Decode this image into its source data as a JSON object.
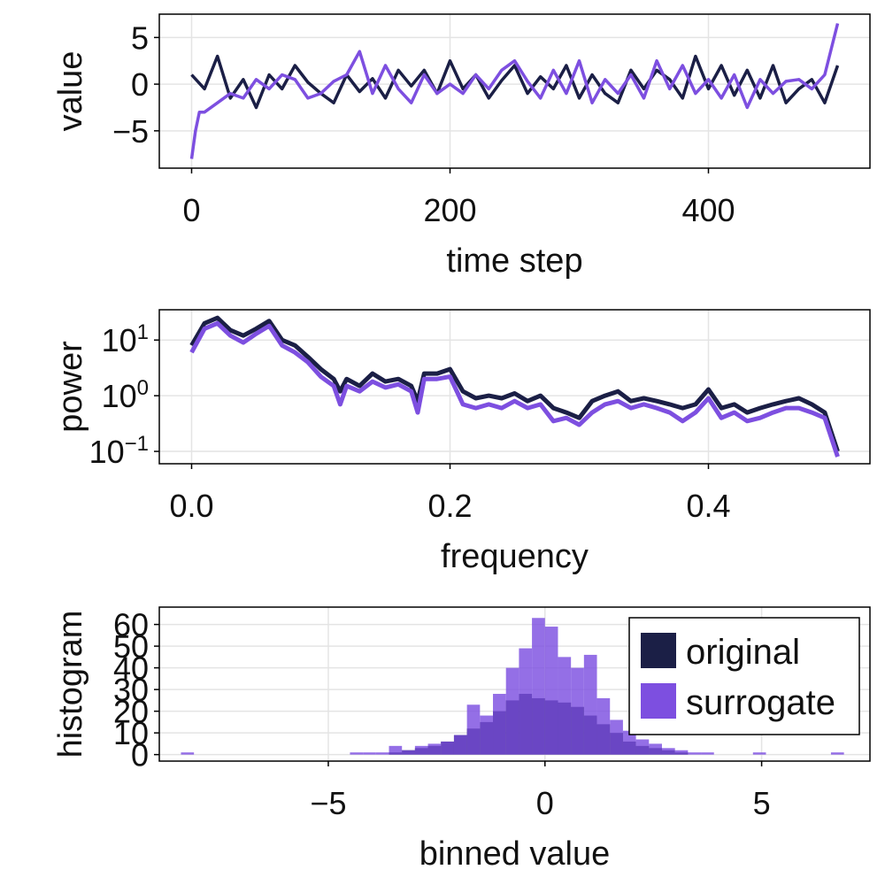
{
  "colors": {
    "original": "#1b1f46",
    "surrogate": "#7d4fe0",
    "grid": "#e4e4e4",
    "frame": "#000000"
  },
  "chart_data": [
    {
      "type": "line",
      "xlabel": "time step",
      "ylabel": "value",
      "xlim": [
        -25,
        525
      ],
      "ylim": [
        -9,
        7.5
      ],
      "xticks": [
        0,
        200,
        400
      ],
      "yticks": [
        -5,
        0,
        5
      ],
      "xtick_labels": [
        "0",
        "200",
        "400"
      ],
      "ytick_labels": [
        "−5",
        "0",
        "5"
      ],
      "grid": true,
      "series": [
        {
          "name": "original",
          "x": [
            0,
            10,
            20,
            30,
            40,
            50,
            60,
            70,
            80,
            90,
            100,
            110,
            120,
            130,
            140,
            150,
            160,
            170,
            180,
            190,
            200,
            210,
            220,
            230,
            240,
            250,
            260,
            270,
            280,
            290,
            300,
            310,
            320,
            330,
            340,
            350,
            360,
            370,
            380,
            390,
            400,
            410,
            420,
            430,
            440,
            450,
            460,
            470,
            480,
            490,
            500
          ],
          "y": [
            1,
            -0.5,
            3,
            -1.5,
            0.5,
            -2.5,
            1,
            -0.5,
            2,
            0.2,
            -1,
            -2,
            1,
            -0.8,
            0.6,
            -1.5,
            1.5,
            -0.2,
            1.5,
            -1,
            2.5,
            -0.5,
            1,
            -1.5,
            0.4,
            2,
            -1,
            0.8,
            -0.5,
            2,
            -1.5,
            1,
            -1,
            -2,
            1.5,
            -0.5,
            1.5,
            0.5,
            -1.5,
            3,
            -0.5,
            2,
            -1.2,
            1.5,
            -1.5,
            2,
            -2,
            -0.5,
            0.5,
            -2,
            2
          ]
        },
        {
          "name": "surrogate",
          "x": [
            0,
            3,
            6,
            10,
            20,
            30,
            40,
            50,
            60,
            70,
            80,
            90,
            100,
            110,
            120,
            130,
            140,
            150,
            160,
            170,
            180,
            190,
            200,
            210,
            220,
            230,
            240,
            250,
            260,
            270,
            280,
            290,
            300,
            310,
            320,
            330,
            340,
            350,
            360,
            370,
            380,
            390,
            400,
            410,
            420,
            430,
            440,
            450,
            460,
            470,
            480,
            490,
            500
          ],
          "y": [
            -8,
            -5,
            -3,
            -3,
            -2,
            -1,
            -1.5,
            0.5,
            -0.5,
            1,
            0.5,
            -1.5,
            -1,
            0.3,
            1,
            3.5,
            -1,
            2,
            -0.5,
            -2,
            1,
            -1,
            0,
            -1,
            1,
            -0.5,
            1.5,
            2.5,
            0.3,
            -1.5,
            1.5,
            -1,
            2.5,
            -2,
            0.5,
            -1,
            1,
            -1.5,
            2.5,
            -0.5,
            2,
            -1,
            0.5,
            -1.5,
            1,
            -2.5,
            0.5,
            -1,
            0.3,
            0.5,
            -0.5,
            1,
            6.5
          ]
        }
      ]
    },
    {
      "type": "line",
      "xlabel": "frequency",
      "ylabel": "power",
      "yscale": "log",
      "xlim": [
        -0.025,
        0.525
      ],
      "ylim": [
        0.06,
        35
      ],
      "xticks": [
        0.0,
        0.2,
        0.4
      ],
      "xtick_labels": [
        "0.0",
        "0.2",
        "0.4"
      ],
      "yticks": [
        0.1,
        1,
        10
      ],
      "ytick_labels": [
        {
          "base": "10",
          "exp": "−1"
        },
        {
          "base": "10",
          "exp": "0"
        },
        {
          "base": "10",
          "exp": "1"
        }
      ],
      "grid": true,
      "series": [
        {
          "name": "original",
          "x": [
            0,
            0.01,
            0.02,
            0.03,
            0.04,
            0.05,
            0.06,
            0.07,
            0.08,
            0.09,
            0.1,
            0.11,
            0.115,
            0.12,
            0.13,
            0.14,
            0.15,
            0.16,
            0.17,
            0.175,
            0.18,
            0.19,
            0.2,
            0.21,
            0.22,
            0.23,
            0.24,
            0.25,
            0.26,
            0.27,
            0.28,
            0.29,
            0.3,
            0.31,
            0.32,
            0.33,
            0.34,
            0.35,
            0.36,
            0.37,
            0.38,
            0.39,
            0.4,
            0.41,
            0.42,
            0.43,
            0.44,
            0.45,
            0.46,
            0.47,
            0.48,
            0.49,
            0.5
          ],
          "y": [
            8,
            20,
            25,
            15,
            12,
            16,
            22,
            10,
            8,
            5,
            3,
            2,
            1.2,
            2,
            1.5,
            2.5,
            1.8,
            2,
            1.5,
            0.8,
            2.5,
            2.5,
            3,
            1.2,
            0.9,
            1,
            0.9,
            1.1,
            0.8,
            1,
            0.6,
            0.5,
            0.4,
            0.8,
            1,
            1.2,
            0.8,
            0.9,
            0.8,
            0.7,
            0.6,
            0.7,
            1.3,
            0.6,
            0.7,
            0.5,
            0.6,
            0.7,
            0.8,
            0.9,
            0.7,
            0.5,
            0.1
          ]
        },
        {
          "name": "surrogate",
          "x": [
            0,
            0.01,
            0.02,
            0.03,
            0.04,
            0.05,
            0.06,
            0.07,
            0.08,
            0.09,
            0.1,
            0.11,
            0.115,
            0.12,
            0.13,
            0.14,
            0.15,
            0.16,
            0.17,
            0.175,
            0.18,
            0.19,
            0.2,
            0.21,
            0.22,
            0.23,
            0.24,
            0.25,
            0.26,
            0.27,
            0.28,
            0.29,
            0.3,
            0.31,
            0.32,
            0.33,
            0.34,
            0.35,
            0.36,
            0.37,
            0.38,
            0.39,
            0.4,
            0.41,
            0.42,
            0.43,
            0.44,
            0.45,
            0.46,
            0.47,
            0.48,
            0.49,
            0.5
          ],
          "y": [
            6,
            16,
            20,
            12,
            9,
            13,
            18,
            8,
            6,
            4,
            2.2,
            1.5,
            0.7,
            1.5,
            1.2,
            1.8,
            1.4,
            1.6,
            1.2,
            0.5,
            2,
            2,
            2.2,
            0.7,
            0.6,
            0.7,
            0.6,
            0.8,
            0.6,
            0.7,
            0.35,
            0.4,
            0.3,
            0.5,
            0.7,
            0.8,
            0.6,
            0.7,
            0.6,
            0.5,
            0.35,
            0.5,
            0.9,
            0.4,
            0.5,
            0.35,
            0.4,
            0.5,
            0.6,
            0.6,
            0.5,
            0.4,
            0.08
          ]
        }
      ]
    },
    {
      "type": "bar",
      "subtype": "histogram",
      "xlabel": "binned value",
      "ylabel": "histogram",
      "xlim": [
        -8.9,
        7.5
      ],
      "ylim": [
        -3,
        68
      ],
      "xticks": [
        -5,
        0,
        5
      ],
      "xtick_labels": [
        "−5",
        "0",
        "5"
      ],
      "yticks": [
        0,
        10,
        20,
        30,
        40,
        50,
        60
      ],
      "ytick_labels": [
        "0",
        "10",
        "20",
        "30",
        "40",
        "50",
        "60"
      ],
      "grid": true,
      "legend_position": "top-right",
      "bin_width": 0.3,
      "series": [
        {
          "name": "original",
          "bin_starts": [
            -4.2,
            -3.9,
            -3.6,
            -3.3,
            -3.0,
            -2.7,
            -2.4,
            -2.1,
            -1.8,
            -1.5,
            -1.2,
            -0.9,
            -0.6,
            -0.3,
            0.0,
            0.3,
            0.6,
            0.9,
            1.2,
            1.5,
            1.8,
            2.1,
            2.4,
            2.7,
            3.0
          ],
          "values": [
            0,
            0,
            1,
            2,
            3,
            4,
            6,
            9,
            12,
            15,
            20,
            25,
            28,
            26,
            25,
            24,
            22,
            18,
            14,
            10,
            6,
            4,
            3,
            2,
            1
          ]
        },
        {
          "name": "surrogate",
          "bin_starts": [
            -8.4,
            -4.5,
            -4.2,
            -3.9,
            -3.6,
            -3.3,
            -3.0,
            -2.7,
            -2.4,
            -2.1,
            -1.8,
            -1.5,
            -1.2,
            -0.9,
            -0.6,
            -0.3,
            0.0,
            0.3,
            0.6,
            0.9,
            1.2,
            1.5,
            1.8,
            2.1,
            2.4,
            2.7,
            3.0,
            3.3,
            3.6,
            4.8,
            6.6
          ],
          "values": [
            1,
            1,
            1,
            1,
            4,
            2,
            4,
            5,
            6,
            9,
            23,
            18,
            28,
            40,
            49,
            63,
            59,
            45,
            40,
            46,
            26,
            16,
            11,
            7,
            5,
            3,
            2,
            1,
            1,
            1,
            1
          ]
        }
      ]
    }
  ]
}
